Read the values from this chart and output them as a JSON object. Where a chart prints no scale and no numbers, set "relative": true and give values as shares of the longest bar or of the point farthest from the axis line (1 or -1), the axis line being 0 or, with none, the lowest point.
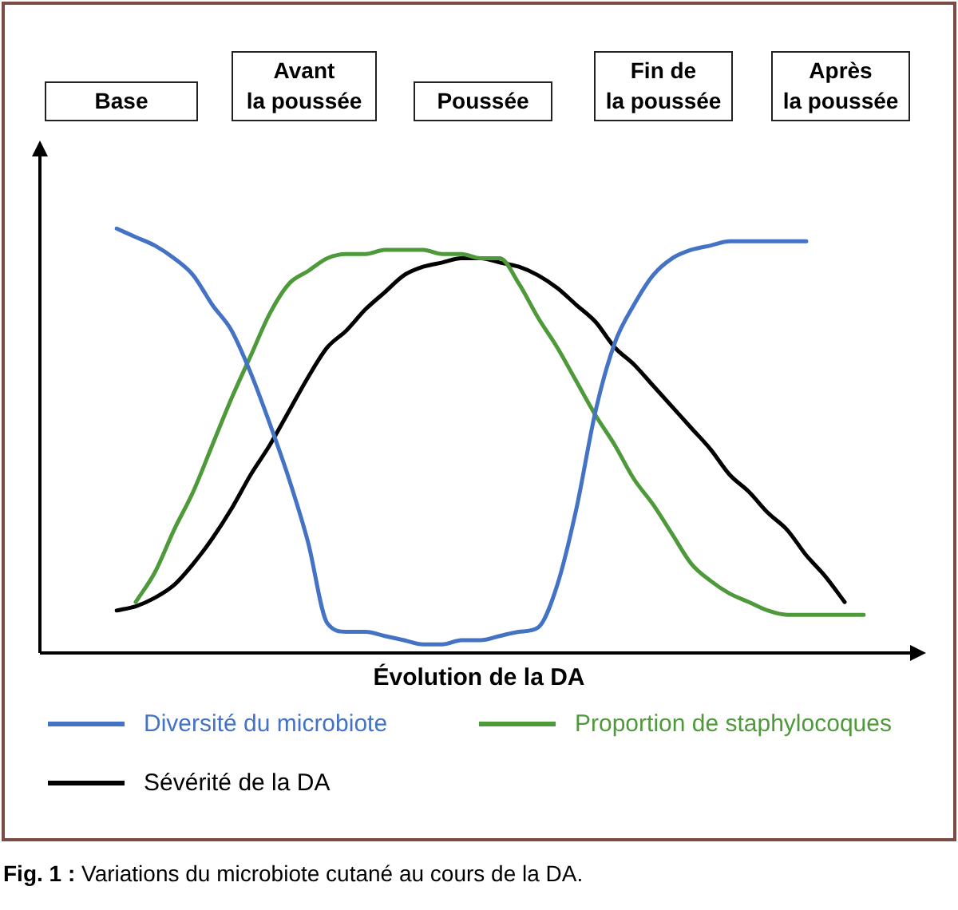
{
  "chart_data": {
    "type": "line",
    "relative": true,
    "xlabel": "Évolution de la DA",
    "categories": [
      null,
      null,
      null,
      null,
      null,
      null,
      null,
      null,
      null,
      null,
      null,
      null,
      null,
      null,
      null,
      null,
      null,
      null,
      null,
      null,
      null,
      null,
      null,
      null,
      null,
      null,
      null,
      null,
      null,
      null,
      null,
      null,
      null,
      null,
      null,
      null,
      null,
      null,
      null,
      null
    ],
    "series": [
      {
        "name": "Diversité du microbiote",
        "color": "#4472c4",
        "values": [
          1.0,
          0.98,
          0.96,
          0.93,
          0.89,
          0.82,
          0.76,
          0.66,
          0.54,
          0.41,
          0.26,
          0.07,
          0.05,
          0.05,
          0.04,
          0.03,
          0.02,
          0.02,
          0.03,
          0.03,
          0.04,
          0.05,
          0.06,
          0.16,
          0.34,
          0.57,
          0.73,
          0.82,
          0.89,
          0.93,
          0.95,
          0.96,
          0.97,
          0.97,
          0.97,
          0.97,
          0.97,
          null,
          null,
          null
        ]
      },
      {
        "name": "Proportion de staphylocoques",
        "color": "#4e9a3a",
        "values": [
          null,
          0.12,
          0.19,
          0.29,
          0.38,
          0.49,
          0.6,
          0.7,
          0.8,
          0.87,
          0.9,
          0.93,
          0.94,
          0.94,
          0.95,
          0.95,
          0.95,
          0.94,
          0.94,
          0.93,
          0.93,
          0.87,
          0.79,
          0.72,
          0.64,
          0.56,
          0.49,
          0.41,
          0.35,
          0.28,
          0.21,
          0.17,
          0.14,
          0.12,
          0.1,
          0.09,
          0.09,
          0.09,
          0.09,
          0.09
        ]
      },
      {
        "name": "Sévérité de la DA",
        "color": "#000000",
        "values": [
          0.1,
          0.11,
          0.13,
          0.16,
          0.21,
          0.27,
          0.34,
          0.42,
          0.49,
          0.57,
          0.65,
          0.72,
          0.76,
          0.81,
          0.85,
          0.89,
          0.91,
          0.92,
          0.93,
          0.93,
          0.92,
          0.91,
          0.89,
          0.86,
          0.82,
          0.78,
          0.72,
          0.68,
          0.63,
          0.58,
          0.53,
          0.48,
          0.42,
          0.38,
          0.33,
          0.29,
          0.23,
          0.18,
          0.12,
          null
        ]
      }
    ],
    "legend": "bottom",
    "marker": "none",
    "line_style": "solid",
    "grid": false,
    "annotations": [
      "Base",
      "Avant\nla poussée",
      "Poussée",
      "Fin de\nla poussée",
      "Après\nla poussée",
      "Fig. 1 : Variations du microbiote cutané au cours de la DA."
    ]
  }
}
